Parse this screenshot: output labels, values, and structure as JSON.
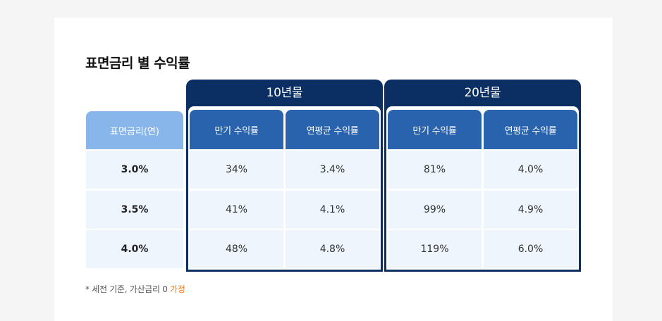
{
  "title": "표면금리 별 수익률",
  "groups": [
    {
      "label": "10년물",
      "col1": "만기 수익률",
      "col2": "연평균 수익률"
    },
    {
      "label": "20년물",
      "col1": "만기 수익률",
      "col2": "연평균 수익률"
    }
  ],
  "rate_header": "표면금리(연)",
  "rows": [
    {
      "rate": "3.0%",
      "y10_maturity": "34%",
      "y10_annual": "3.4%",
      "y20_maturity": "81%",
      "y20_annual": "4.0%"
    },
    {
      "rate": "3.5%",
      "y10_maturity": "41%",
      "y10_annual": "4.1%",
      "y20_maturity": "99%",
      "y20_annual": "4.9%"
    },
    {
      "rate": "4.0%",
      "y10_maturity": "48%",
      "y10_annual": "4.8%",
      "y20_maturity": "119%",
      "y20_annual": "6.0%"
    }
  ],
  "note": {
    "text": "* 세전 기준, 가산금리 0 ",
    "highlight": "가정",
    "highlight_color": "#f07a16"
  },
  "colors": {
    "frame": "#0b2f63",
    "header": "#2a63ad",
    "rate_header": "#88b6ea",
    "row_bg": "#eef5fd"
  }
}
